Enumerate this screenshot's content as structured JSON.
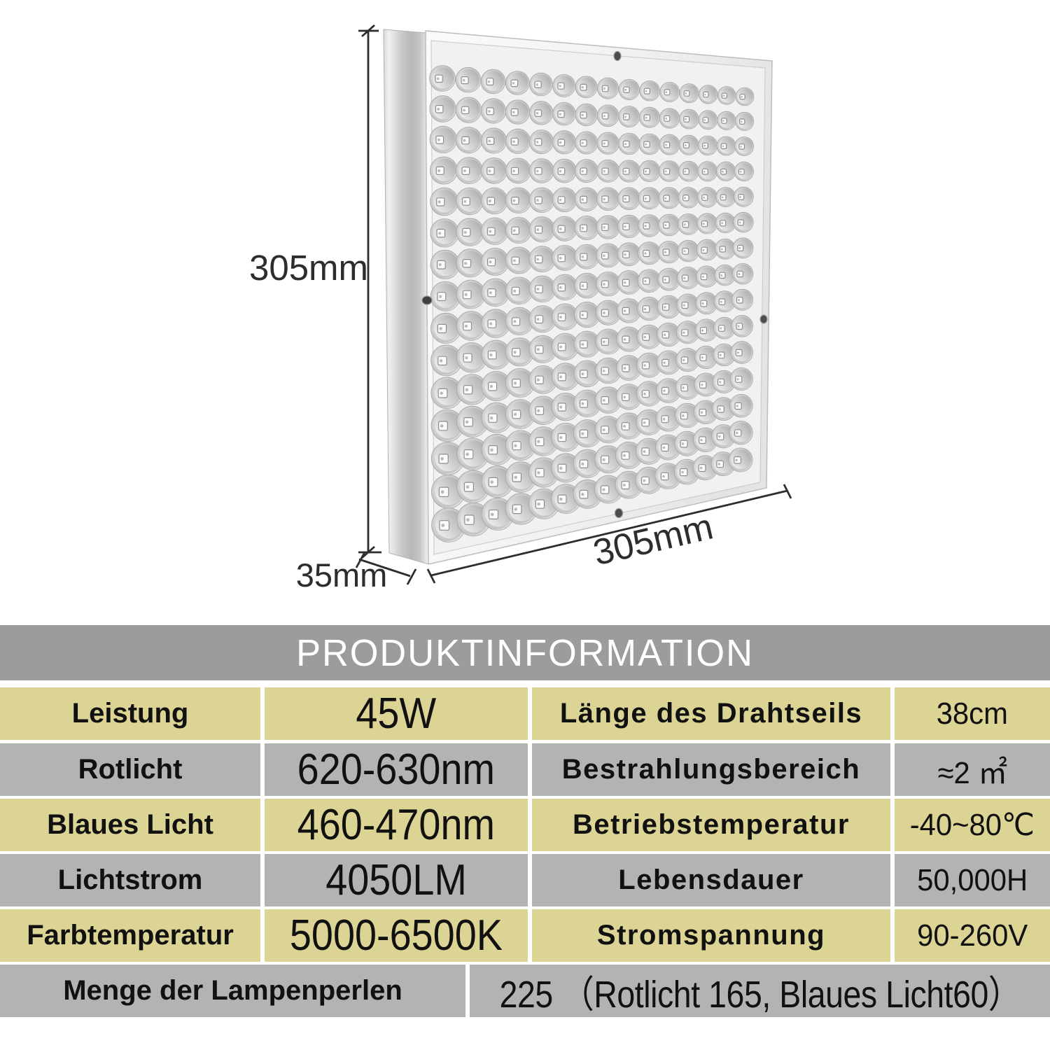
{
  "product_image": {
    "dim_height": "305mm",
    "dim_width": "305mm",
    "dim_depth": "35mm",
    "led_grid": {
      "rows": 15,
      "cols": 15
    }
  },
  "table": {
    "title": "PRODUKTINFORMATION",
    "rows": [
      {
        "c1": "Leistung",
        "c2": "45W",
        "c3": "Länge des Drahtseils",
        "c4": "38cm"
      },
      {
        "c1": "Rotlicht",
        "c2": "620-630nm",
        "c3": "Bestrahlungsbereich",
        "c4": "≈2 ㎡"
      },
      {
        "c1": "Blaues Licht",
        "c2": "460-470nm",
        "c3": "Betriebstemperatur",
        "c4": "-40~80℃"
      },
      {
        "c1": "Lichtstrom",
        "c2": "4050LM",
        "c3": "Lebensdauer",
        "c4": "50,000H"
      },
      {
        "c1": "Farbtemperatur",
        "c2": "5000-6500K",
        "c3": "Stromspannung",
        "c4": "90-260V"
      }
    ],
    "footer": {
      "label": "Menge der Lampenperlen",
      "value": "225 （Rotlicht 165, Blaues Licht60）"
    }
  },
  "colors": {
    "khaki": "#dcd494",
    "row_gray": "#b3b3b3",
    "header_gray": "#9c9c9c",
    "text": "#111111",
    "title_text": "#ffffff",
    "dim_text": "#2d2d2d"
  }
}
